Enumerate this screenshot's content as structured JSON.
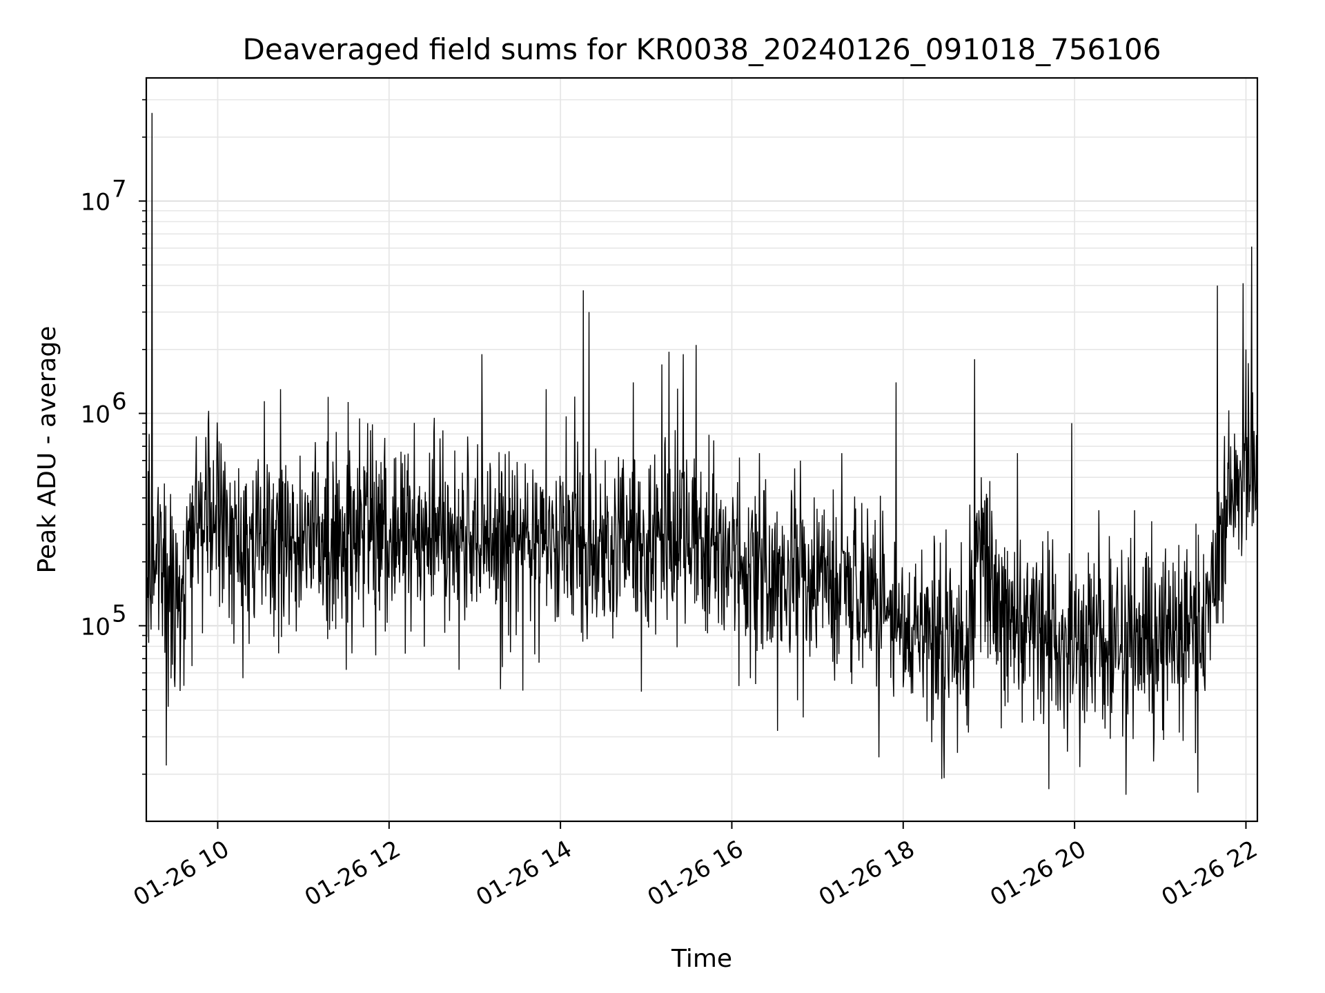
{
  "chart_data": {
    "type": "line",
    "title": "Deaveraged field sums for KR0038_20240126_091018_756106",
    "xlabel": "Time",
    "ylabel": "Peak ADU - average",
    "yscale": "log",
    "grid": true,
    "line_color": "#000000",
    "grid_color": "#e6e6e6",
    "date": "2024-01-26",
    "x_range": [
      "2024-01-26 09:10",
      "2024-01-26 22:08"
    ],
    "ylim": [
      12000,
      38000000
    ],
    "x_ticks": [
      {
        "time": "2024-01-26 10:00",
        "label": "01-26 10"
      },
      {
        "time": "2024-01-26 12:00",
        "label": "01-26 12"
      },
      {
        "time": "2024-01-26 14:00",
        "label": "01-26 14"
      },
      {
        "time": "2024-01-26 16:00",
        "label": "01-26 16"
      },
      {
        "time": "2024-01-26 18:00",
        "label": "01-26 18"
      },
      {
        "time": "2024-01-26 20:00",
        "label": "01-26 20"
      },
      {
        "time": "2024-01-26 22:00",
        "label": "01-26 22"
      }
    ],
    "y_ticks": [
      {
        "value": 100000,
        "base": "10",
        "exp": "5"
      },
      {
        "value": 1000000,
        "base": "10",
        "exp": "6"
      },
      {
        "value": 10000000,
        "base": "10",
        "exp": "7"
      }
    ],
    "baseline_trend": [
      {
        "time": "2024-01-26 09:10",
        "value": 200000
      },
      {
        "time": "2024-01-26 09:20",
        "value": 150000
      },
      {
        "time": "2024-01-26 09:35",
        "value": 140000
      },
      {
        "time": "2024-01-26 09:45",
        "value": 320000
      },
      {
        "time": "2024-01-26 10:30",
        "value": 250000
      },
      {
        "time": "2024-01-26 11:30",
        "value": 280000
      },
      {
        "time": "2024-01-26 12:30",
        "value": 270000
      },
      {
        "time": "2024-01-26 13:30",
        "value": 260000
      },
      {
        "time": "2024-01-26 14:30",
        "value": 240000
      },
      {
        "time": "2024-01-26 15:30",
        "value": 260000
      },
      {
        "time": "2024-01-26 16:00",
        "value": 200000
      },
      {
        "time": "2024-01-26 16:30",
        "value": 160000
      },
      {
        "time": "2024-01-26 17:00",
        "value": 180000
      },
      {
        "time": "2024-01-26 17:30",
        "value": 130000
      },
      {
        "time": "2024-01-26 18:00",
        "value": 100000
      },
      {
        "time": "2024-01-26 18:45",
        "value": 80000
      },
      {
        "time": "2024-01-26 18:55",
        "value": 300000
      },
      {
        "time": "2024-01-26 19:05",
        "value": 110000
      },
      {
        "time": "2024-01-26 20:00",
        "value": 80000
      },
      {
        "time": "2024-01-26 21:00",
        "value": 85000
      },
      {
        "time": "2024-01-26 21:35",
        "value": 100000
      },
      {
        "time": "2024-01-26 21:45",
        "value": 350000
      },
      {
        "time": "2024-01-26 22:08",
        "value": 550000
      }
    ],
    "spikes": [
      {
        "time": "2024-01-26 09:14",
        "value": 26000000
      },
      {
        "time": "2024-01-26 09:12",
        "value": 800000
      },
      {
        "time": "2024-01-26 09:24",
        "value": 22000
      },
      {
        "time": "2024-01-26 09:45",
        "value": 780000
      },
      {
        "time": "2024-01-26 10:44",
        "value": 1300000
      },
      {
        "time": "2024-01-26 11:30",
        "value": 62000
      },
      {
        "time": "2024-01-26 11:45",
        "value": 900000
      },
      {
        "time": "2024-01-26 12:49",
        "value": 62000
      },
      {
        "time": "2024-01-26 13:05",
        "value": 1900000
      },
      {
        "time": "2024-01-26 13:25",
        "value": 75000
      },
      {
        "time": "2024-01-26 13:45",
        "value": 67000
      },
      {
        "time": "2024-01-26 13:50",
        "value": 1300000
      },
      {
        "time": "2024-01-26 14:10",
        "value": 1200000
      },
      {
        "time": "2024-01-26 14:16",
        "value": 3800000
      },
      {
        "time": "2024-01-26 14:20",
        "value": 3000000
      },
      {
        "time": "2024-01-26 14:51",
        "value": 1400000
      },
      {
        "time": "2024-01-26 15:11",
        "value": 1700000
      },
      {
        "time": "2024-01-26 15:16",
        "value": 1950000
      },
      {
        "time": "2024-01-26 15:26",
        "value": 1900000
      },
      {
        "time": "2024-01-26 15:35",
        "value": 2100000
      },
      {
        "time": "2024-01-26 16:05",
        "value": 52000
      },
      {
        "time": "2024-01-26 16:32",
        "value": 32000
      },
      {
        "time": "2024-01-26 16:50",
        "value": 37000
      },
      {
        "time": "2024-01-26 17:17",
        "value": 650000
      },
      {
        "time": "2024-01-26 17:43",
        "value": 24000
      },
      {
        "time": "2024-01-26 17:55",
        "value": 1400000
      },
      {
        "time": "2024-01-26 18:27",
        "value": 19000
      },
      {
        "time": "2024-01-26 18:50",
        "value": 1800000
      },
      {
        "time": "2024-01-26 19:20",
        "value": 650000
      },
      {
        "time": "2024-01-26 19:58",
        "value": 900000
      },
      {
        "time": "2024-01-26 19:42",
        "value": 17000
      },
      {
        "time": "2024-01-26 20:17",
        "value": 350000
      },
      {
        "time": "2024-01-26 20:36",
        "value": 16000
      },
      {
        "time": "2024-01-26 20:42",
        "value": 350000
      },
      {
        "time": "2024-01-26 21:40",
        "value": 4000000
      },
      {
        "time": "2024-01-26 21:58",
        "value": 4100000
      },
      {
        "time": "2024-01-26 22:00",
        "value": 2000000
      },
      {
        "time": "2024-01-26 22:04",
        "value": 6100000
      }
    ],
    "noise_dex": 0.22,
    "samples_per_minute": 3
  }
}
